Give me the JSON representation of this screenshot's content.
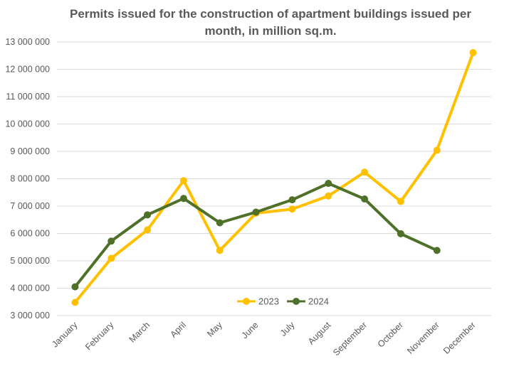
{
  "chart_data": {
    "type": "line",
    "title_lines": [
      "Permits issued for the construction of apartment buildings issued per",
      "month, in million sq.m."
    ],
    "xlabel": "",
    "ylabel": "",
    "categories": [
      "January",
      "February",
      "March",
      "April",
      "May",
      "June",
      "July",
      "August",
      "September",
      "October",
      "November",
      "December"
    ],
    "ylim": [
      3000000,
      13000000
    ],
    "yticks": [
      3000000,
      4000000,
      5000000,
      6000000,
      7000000,
      8000000,
      9000000,
      10000000,
      11000000,
      12000000,
      13000000
    ],
    "ytick_labels": [
      "3 000 000",
      "4 000 000",
      "5 000 000",
      "6 000 000",
      "7 000 000",
      "8 000 000",
      "9 000 000",
      "10 000 000",
      "11 000 000",
      "12 000 000",
      "13 000 000"
    ],
    "grid": true,
    "legend_position": "bottom-center",
    "series": [
      {
        "name": "2023",
        "color": "#ffc000",
        "values": [
          3480000,
          5090000,
          6130000,
          7930000,
          5380000,
          6740000,
          6890000,
          7370000,
          8240000,
          7170000,
          9040000,
          12610000
        ]
      },
      {
        "name": "2024",
        "color": "#4e7028",
        "values": [
          4050000,
          5720000,
          6680000,
          7280000,
          6390000,
          6780000,
          7230000,
          7830000,
          7260000,
          5990000,
          5380000,
          null
        ]
      }
    ]
  }
}
